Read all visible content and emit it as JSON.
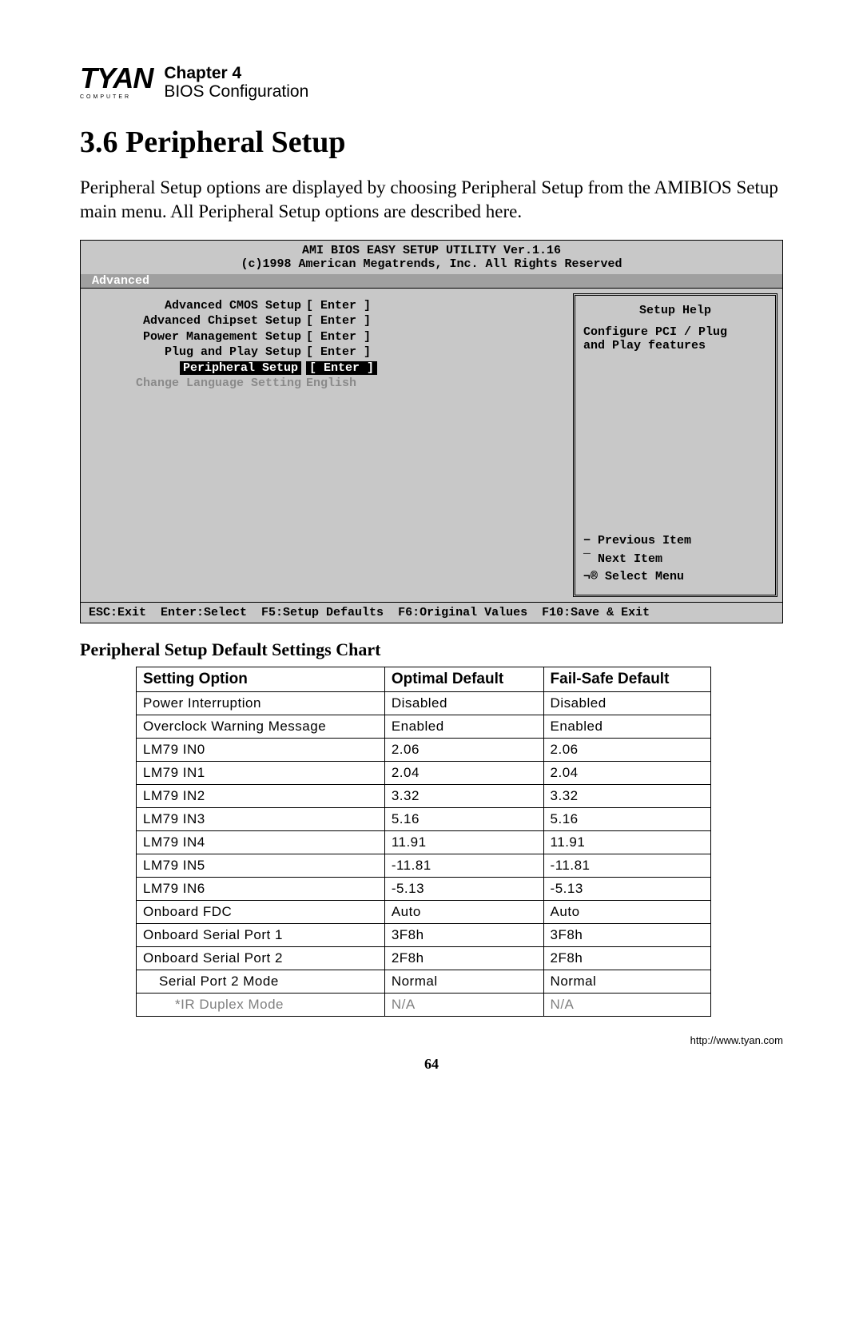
{
  "header": {
    "logo_main": "TYAN",
    "logo_sub": "COMPUTER",
    "chapter": "Chapter 4",
    "subtitle": "BIOS Configuration"
  },
  "section": {
    "number_title": "3.6 Peripheral Setup",
    "intro": "Peripheral Setup options are displayed by choosing Peripheral Setup from the AMIBIOS Setup main menu.  All Peripheral Setup options are described here."
  },
  "bios": {
    "title": "AMI BIOS EASY SETUP UTILITY Ver.1.16",
    "copyright": "(c)1998 American Megatrends, Inc.  All Rights Reserved",
    "tab": "Advanced",
    "menu": [
      {
        "label": "Advanced CMOS Setup",
        "value": "[ Enter ]",
        "selected": false,
        "dim": false
      },
      {
        "label": "Advanced Chipset Setup",
        "value": "[ Enter ]",
        "selected": false,
        "dim": false
      },
      {
        "label": "Power Management Setup",
        "value": "[ Enter ]",
        "selected": false,
        "dim": false
      },
      {
        "label": "Plug and Play Setup",
        "value": "[ Enter ]",
        "selected": false,
        "dim": false
      },
      {
        "label": "Peripheral Setup",
        "value": "[ Enter ]",
        "selected": true,
        "dim": false
      },
      {
        "label": "Change Language Setting",
        "value": "English",
        "selected": false,
        "dim": true
      }
    ],
    "help": {
      "title": "Setup Help",
      "text1": "Configure PCI / Plug",
      "text2": "and Play features"
    },
    "nav": {
      "prev": "Previous Item",
      "next": "Next Item",
      "select": "Select Menu",
      "sym_prev": "−",
      "sym_next": "¯",
      "sym_select": "¬®"
    },
    "footer": "ESC:Exit  Enter:Select  F5:Setup Defaults  F6:Original Values  F10:Save & Exit"
  },
  "table": {
    "title": "Peripheral Setup Default Settings Chart",
    "columns": [
      "Setting Option",
      "Optimal Default",
      "Fail-Safe Default"
    ],
    "rows": [
      {
        "setting": "Power Interruption",
        "optimal": "Disabled",
        "failsafe": "Disabled",
        "indent": 0
      },
      {
        "setting": "Overclock Warning Message",
        "optimal": "Enabled",
        "failsafe": "Enabled",
        "indent": 0
      },
      {
        "setting": "LM79 IN0",
        "optimal": "2.06",
        "failsafe": "2.06",
        "indent": 0
      },
      {
        "setting": "LM79 IN1",
        "optimal": "2.04",
        "failsafe": "2.04",
        "indent": 0
      },
      {
        "setting": "LM79 IN2",
        "optimal": "3.32",
        "failsafe": "3.32",
        "indent": 0
      },
      {
        "setting": "LM79 IN3",
        "optimal": "5.16",
        "failsafe": "5.16",
        "indent": 0
      },
      {
        "setting": "LM79 IN4",
        "optimal": "11.91",
        "failsafe": "11.91",
        "indent": 0
      },
      {
        "setting": "LM79 IN5",
        "optimal": "-11.81",
        "failsafe": "-11.81",
        "indent": 0
      },
      {
        "setting": "LM79 IN6",
        "optimal": "-5.13",
        "failsafe": "-5.13",
        "indent": 0
      },
      {
        "setting": "Onboard FDC",
        "optimal": "Auto",
        "failsafe": "Auto",
        "indent": 0
      },
      {
        "setting": "Onboard Serial Port 1",
        "optimal": "3F8h",
        "failsafe": "3F8h",
        "indent": 0
      },
      {
        "setting": "Onboard Serial Port 2",
        "optimal": "2F8h",
        "failsafe": "2F8h",
        "indent": 0
      },
      {
        "setting": "Serial Port 2 Mode",
        "optimal": "Normal",
        "failsafe": "Normal",
        "indent": 1
      },
      {
        "setting": "*IR Duplex Mode",
        "optimal": "N/A",
        "failsafe": "N/A",
        "indent": 2
      }
    ]
  },
  "footer": {
    "url": "http://www.tyan.com",
    "page": "64"
  }
}
